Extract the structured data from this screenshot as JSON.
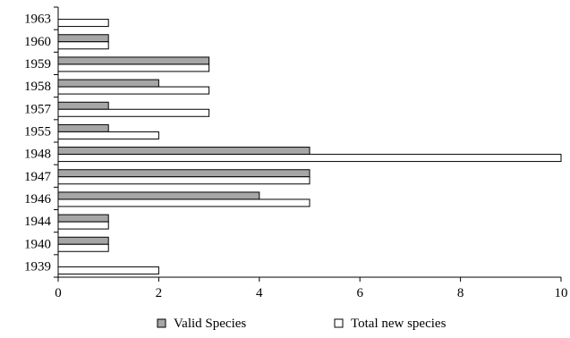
{
  "chart_data": {
    "type": "bar",
    "orientation": "horizontal",
    "categories": [
      "1963",
      "1960",
      "1959",
      "1958",
      "1957",
      "1955",
      "1948",
      "1947",
      "1946",
      "1944",
      "1940",
      "1939"
    ],
    "series": [
      {
        "name": "Valid Species",
        "values": [
          0,
          1,
          3,
          2,
          1,
          1,
          5,
          5,
          4,
          1,
          1,
          0
        ],
        "color": "#a6a6a6"
      },
      {
        "name": "Total new species",
        "values": [
          1,
          1,
          3,
          3,
          3,
          2,
          10,
          5,
          5,
          1,
          1,
          2
        ],
        "color": "#ffffff"
      }
    ],
    "x_ticks": [
      "0",
      "2",
      "4",
      "6",
      "8",
      "10"
    ],
    "xlim": [
      0,
      10
    ],
    "title": "",
    "xlabel": "",
    "ylabel": "",
    "grid": false,
    "legend_position": "bottom"
  }
}
